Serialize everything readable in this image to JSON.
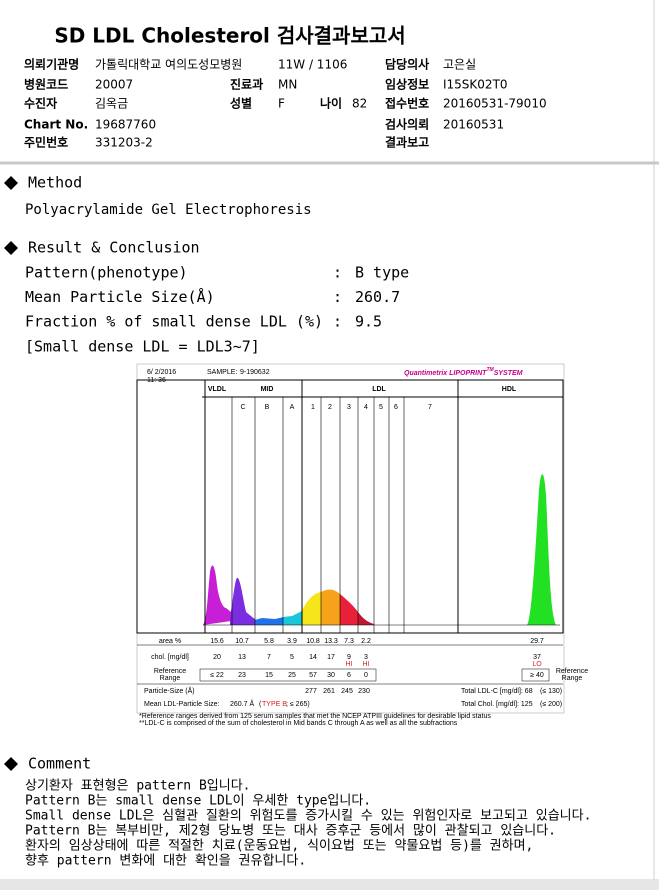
{
  "header": {
    "title": "SD LDL Cholesterol 검사결과보고서"
  },
  "info": {
    "institution": {
      "label": "의뢰기관명",
      "value": "가톨릭대학교 여의도성모병원",
      "ward": "11W / 1106"
    },
    "doctor": {
      "label": "담당의사",
      "value": "고은실"
    },
    "hospital_code": {
      "label": "병원코드",
      "value": "20007"
    },
    "department": {
      "label": "진료과",
      "value": "MN"
    },
    "clinical_info": {
      "label": "임상정보",
      "value": "I15SK02T0"
    },
    "patient": {
      "label": "수진자",
      "value": "김옥금"
    },
    "sex": {
      "label": "성별",
      "value": "F"
    },
    "age": {
      "label": "나이",
      "value": "82"
    },
    "receipt_no": {
      "label": "접수번호",
      "value": "20160531-79010"
    },
    "chart_no": {
      "label": "Chart No.",
      "value": "19687760"
    },
    "request_date": {
      "label": "검사의뢰",
      "value": "20160531"
    },
    "resident_no": {
      "label": "주민번호",
      "value": "331203-2"
    },
    "report": {
      "label": "결과보고"
    }
  },
  "method": {
    "title": "Method",
    "text": "Polyacrylamide Gel Electrophoresis"
  },
  "result": {
    "title": "Result & Conclusion",
    "rows": [
      {
        "label": "Pattern(phenotype)",
        "separator": ":",
        "value": "B type"
      },
      {
        "label": "Mean Particle Size(Å)",
        "separator": ":",
        "value": "260.7"
      },
      {
        "label": "Fraction % of small dense LDL (%)",
        "separator": ":",
        "value": "9.5"
      }
    ],
    "note": "[Small dense LDL = LDL3~7]"
  },
  "report_image": {
    "date": "6/ 2/2016",
    "time": "11: 36",
    "sample_label": "SAMPLE:",
    "sample_id": "9-190632",
    "brand": "Quantimetrix LIPOPRINT",
    "brand_tm": "TM",
    "brand_system": "SYSTEM",
    "groups": [
      "VLDL",
      "MID",
      "LDL",
      "HDL"
    ],
    "bands": [
      "C",
      "B",
      "A",
      "1",
      "2",
      "3",
      "4",
      "5",
      "6",
      "7"
    ],
    "area_label": "area %",
    "area": [
      "15.6",
      "10.7",
      "5.8",
      "3.9",
      "10.8",
      "13.3",
      "7.3",
      "2.2",
      "29.7"
    ],
    "chol_label": "chol. [mg/dl]",
    "chol": [
      "20",
      "13",
      "7",
      "5",
      "14",
      "17",
      "9",
      "3",
      "37"
    ],
    "flags": [
      null,
      null,
      null,
      null,
      null,
      null,
      "HI",
      "HI",
      "LO"
    ],
    "reference_label": [
      "Reference",
      "Range"
    ],
    "reference": [
      "≤ 22",
      "23",
      "15",
      "25",
      "57",
      "30",
      "6",
      "0",
      "≥ 40"
    ],
    "particle_label": "Particle-Size (Å)",
    "particle": [
      null,
      null,
      null,
      null,
      "277",
      "261",
      "245",
      "230",
      null
    ],
    "mean_label": "Mean LDL-Particle Size:",
    "mean_value": "260.7 Å",
    "mean_type_open": "(",
    "mean_type": "TYPE B",
    "mean_type_close": "; ≤ 265)",
    "total_ldl_label": "Total LDL-C [mg/dl]: 68",
    "total_ldl_ref": "(≤ 130)",
    "total_chol_label": "Total Chol. [mg/dl]:  125",
    "total_chol_ref": "(≤ 200)",
    "footnotes": [
      "*Reference ranges derived from 125 serum samples that met the NCEP ATPIII guidelines for desirable lipid status",
      "**LDL-C is comprised of the sum of cholesterol in Mid bands C through A as well as all the subfractions"
    ]
  },
  "comment": {
    "title": "Comment",
    "lines": [
      "상기환자 표현형은 pattern B입니다.",
      "Pattern B는 small dense LDL이 우세한 type입니다.",
      "Small dense LDL은 심혈관 질환의 위험도를 증가시킬 수 있는 위험인자로 보고되고 있습니다.",
      "Pattern B는 복부비만, 제2형 당뇨병 또는 대사 증후군 등에서 많이 관찰되고 있습니다.",
      "환자의 임상상태에 따른 적절한 치료(운동요법, 식이요법 또는 약물요법 등)를 권하며,",
      "향후 pattern 변화에 대한 확인을 권유합니다."
    ]
  }
}
